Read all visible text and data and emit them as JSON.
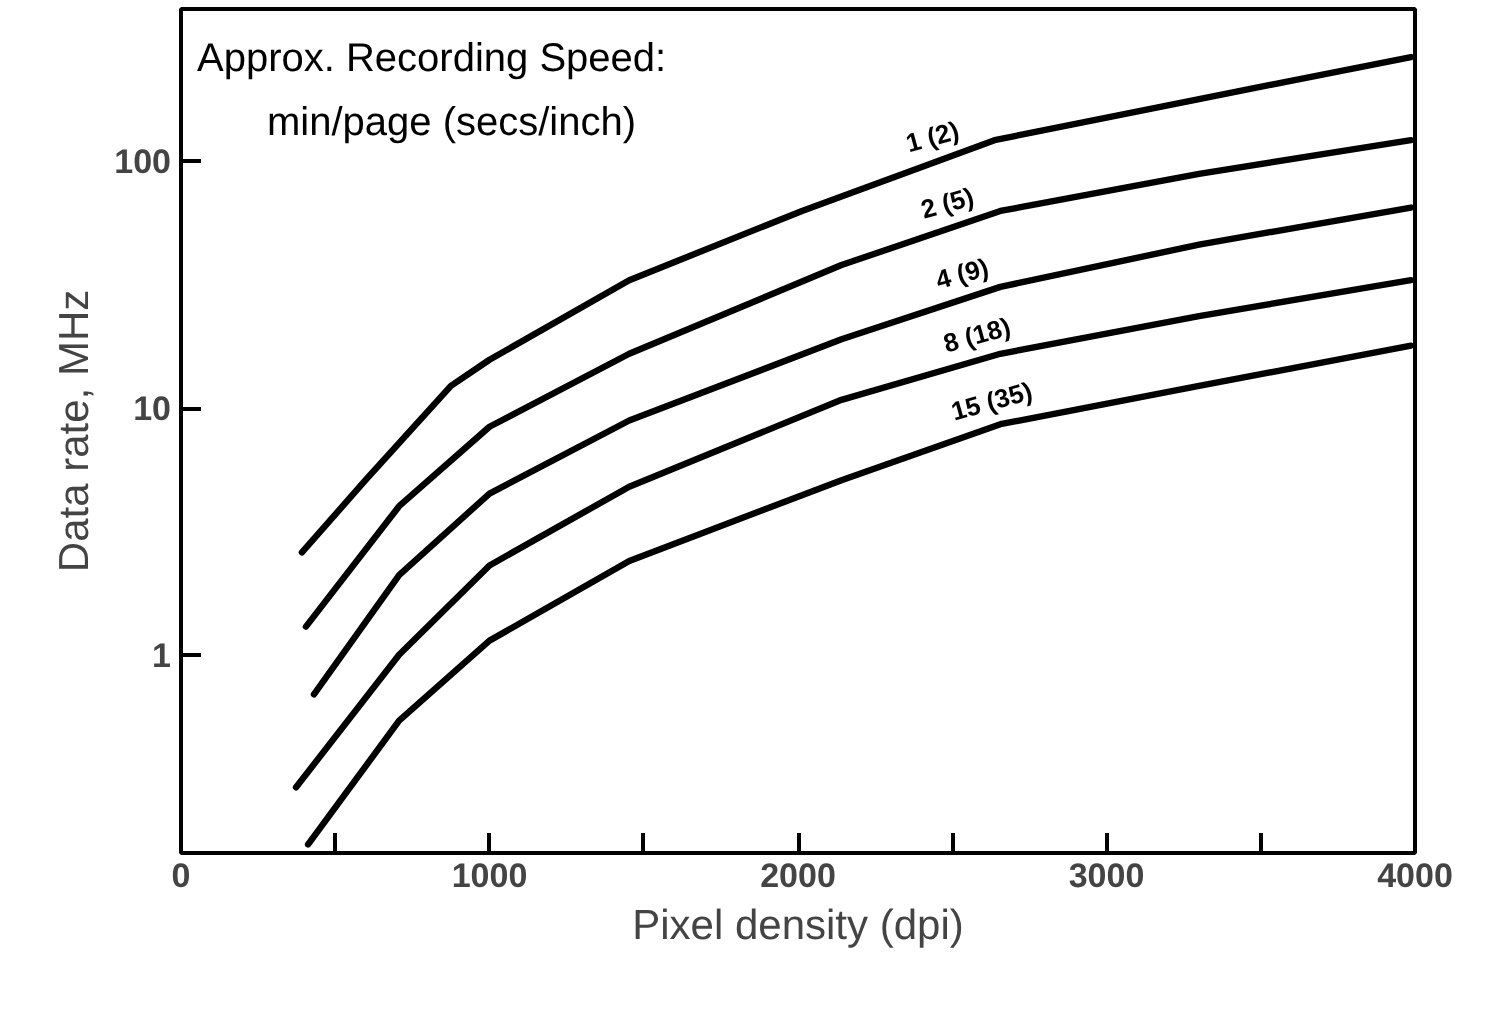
{
  "chart_data": {
    "type": "line",
    "xlabel": "Pixel density (dpi)",
    "ylabel": "Data rate, MHz",
    "log": "y",
    "grid": false,
    "marker": "none",
    "line_style": "solid",
    "annotations": [
      "Approx. Recording Speed:",
      "min/page (secs/inch)"
    ],
    "xlim": [
      0,
      4000
    ],
    "ylim": [
      0.157,
      415
    ],
    "xticks": [
      0,
      {
        "value": 500,
        "label": null
      },
      1000,
      {
        "value": 1500,
        "label": null
      },
      2000,
      {
        "value": 2500,
        "label": null
      },
      3000,
      {
        "value": 3500,
        "label": null
      },
      4000
    ],
    "yticks": [
      1,
      10,
      100
    ],
    "series": [
      {
        "name": "1  (2)",
        "color": "#000000",
        "x": [
          392,
          598,
          875,
          1000,
          1453,
          2013,
          2637,
          3300,
          3987
        ],
        "values": [
          2.6,
          5.1,
          12.3,
          15.7,
          33,
          63,
          122,
          179,
          265
        ]
      },
      {
        "name": "2  (5)",
        "color": "#000000",
        "x": [
          405,
          707,
          1000,
          1453,
          2141,
          2656,
          3300,
          3987
        ],
        "values": [
          1.3,
          4.0,
          8.4,
          16.6,
          38,
          63,
          89,
          122
        ]
      },
      {
        "name": "4  (9)",
        "color": "#000000",
        "x": [
          431,
          707,
          1000,
          1453,
          2141,
          2656,
          3300,
          3987
        ],
        "values": [
          0.69,
          2.1,
          4.5,
          8.9,
          19,
          31,
          46,
          65
        ]
      },
      {
        "name": "8  (18)",
        "color": "#000000",
        "x": [
          373,
          707,
          1000,
          1453,
          2141,
          2656,
          3300,
          3987
        ],
        "values": [
          0.29,
          1.0,
          2.3,
          4.8,
          10.8,
          16.6,
          23.6,
          33
        ]
      },
      {
        "name": "15  (35)",
        "color": "#000000",
        "x": [
          412,
          707,
          1000,
          1453,
          2141,
          2656,
          3300,
          3987
        ],
        "values": [
          0.17,
          0.54,
          1.14,
          2.4,
          5.1,
          8.6,
          12.3,
          17.9
        ]
      }
    ]
  }
}
